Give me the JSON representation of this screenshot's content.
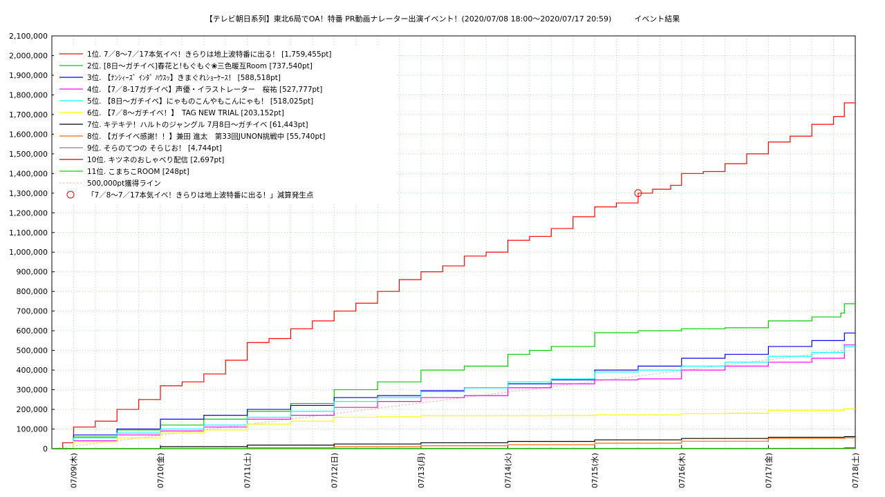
{
  "chart_data": {
    "type": "line",
    "title": "【テレビ朝日系列】東北6局でOA！特番 PR動画ナレーター出演イベント！(2020/07/08 18:00〜2020/07/17 20:59)　　　イベント結果",
    "ylim": [
      0,
      2100000
    ],
    "y_ticks": [
      "0",
      "100,000",
      "200,000",
      "300,000",
      "400,000",
      "500,000",
      "600,000",
      "700,000",
      "800,000",
      "900,000",
      "1,000,000",
      "1,100,000",
      "1,200,000",
      "1,300,000",
      "1,400,000",
      "1,500,000",
      "1,600,000",
      "1,700,000",
      "1,800,000",
      "1,900,000",
      "2,000,000",
      "2,100,000"
    ],
    "x_range": [
      "2020-07-08 18:00",
      "2020-07-18 00:00"
    ],
    "x_ticks": [
      {
        "date": "2020-07-09",
        "label": "07/09(木)"
      },
      {
        "date": "2020-07-10",
        "label": "07/10(金)"
      },
      {
        "date": "2020-07-11",
        "label": "07/11(土)"
      },
      {
        "date": "2020-07-12",
        "label": "07/12(日)"
      },
      {
        "date": "2020-07-13",
        "label": "07/13(月)"
      },
      {
        "date": "2020-07-14",
        "label": "07/14(火)"
      },
      {
        "date": "2020-07-15",
        "label": "07/15(水)"
      },
      {
        "date": "2020-07-16",
        "label": "07/16(木)"
      },
      {
        "date": "2020-07-17",
        "label": "07/17(金)"
      },
      {
        "date": "2020-07-18",
        "label": "07/18(土)"
      }
    ],
    "grid": true,
    "legend_position": "top-left",
    "series": [
      {
        "name": "1位. 7／8〜7／17本気イベ！きらりは地上波特番に出る！ [1,759,455pt]",
        "color": "#ff0000",
        "points": [
          [
            "2020-07-08 18:00",
            0
          ],
          [
            "2020-07-08 21:00",
            30000
          ],
          [
            "2020-07-09 00:00",
            110000
          ],
          [
            "2020-07-09 06:00",
            140000
          ],
          [
            "2020-07-09 12:00",
            200000
          ],
          [
            "2020-07-09 18:00",
            250000
          ],
          [
            "2020-07-10 00:00",
            320000
          ],
          [
            "2020-07-10 06:00",
            340000
          ],
          [
            "2020-07-10 12:00",
            380000
          ],
          [
            "2020-07-10 18:00",
            450000
          ],
          [
            "2020-07-11 00:00",
            540000
          ],
          [
            "2020-07-11 06:00",
            560000
          ],
          [
            "2020-07-11 12:00",
            610000
          ],
          [
            "2020-07-11 18:00",
            650000
          ],
          [
            "2020-07-12 00:00",
            700000
          ],
          [
            "2020-07-12 06:00",
            740000
          ],
          [
            "2020-07-12 12:00",
            800000
          ],
          [
            "2020-07-12 18:00",
            860000
          ],
          [
            "2020-07-13 00:00",
            900000
          ],
          [
            "2020-07-13 06:00",
            930000
          ],
          [
            "2020-07-13 12:00",
            980000
          ],
          [
            "2020-07-13 18:00",
            1000000
          ],
          [
            "2020-07-14 00:00",
            1060000
          ],
          [
            "2020-07-14 06:00",
            1080000
          ],
          [
            "2020-07-14 12:00",
            1120000
          ],
          [
            "2020-07-14 18:00",
            1180000
          ],
          [
            "2020-07-15 00:00",
            1230000
          ],
          [
            "2020-07-15 06:00",
            1250000
          ],
          [
            "2020-07-15 12:00",
            1300000
          ],
          [
            "2020-07-15 16:00",
            1320000
          ],
          [
            "2020-07-15 21:00",
            1340000
          ],
          [
            "2020-07-16 00:00",
            1400000
          ],
          [
            "2020-07-16 06:00",
            1410000
          ],
          [
            "2020-07-16 12:00",
            1450000
          ],
          [
            "2020-07-16 18:00",
            1500000
          ],
          [
            "2020-07-17 00:00",
            1560000
          ],
          [
            "2020-07-17 06:00",
            1590000
          ],
          [
            "2020-07-17 12:00",
            1650000
          ],
          [
            "2020-07-17 18:00",
            1690000
          ],
          [
            "2020-07-17 21:00",
            1759455
          ],
          [
            "2020-07-18 00:00",
            1759455
          ]
        ]
      },
      {
        "name": "2位. [8日〜ガチイベ]春花と!もぐもぐ❀三色暖互Room [737,540pt]",
        "color": "#00cc00",
        "points": [
          [
            "2020-07-08 18:00",
            0
          ],
          [
            "2020-07-09 00:00",
            60000
          ],
          [
            "2020-07-09 12:00",
            95000
          ],
          [
            "2020-07-10 00:00",
            120000
          ],
          [
            "2020-07-10 12:00",
            150000
          ],
          [
            "2020-07-11 00:00",
            190000
          ],
          [
            "2020-07-11 12:00",
            230000
          ],
          [
            "2020-07-12 00:00",
            300000
          ],
          [
            "2020-07-12 12:00",
            340000
          ],
          [
            "2020-07-13 00:00",
            400000
          ],
          [
            "2020-07-13 12:00",
            420000
          ],
          [
            "2020-07-14 00:00",
            480000
          ],
          [
            "2020-07-14 06:00",
            500000
          ],
          [
            "2020-07-14 12:00",
            520000
          ],
          [
            "2020-07-15 00:00",
            590000
          ],
          [
            "2020-07-15 12:00",
            600000
          ],
          [
            "2020-07-16 00:00",
            610000
          ],
          [
            "2020-07-16 12:00",
            615000
          ],
          [
            "2020-07-17 00:00",
            650000
          ],
          [
            "2020-07-17 12:00",
            670000
          ],
          [
            "2020-07-17 20:00",
            690000
          ],
          [
            "2020-07-17 21:00",
            737540
          ],
          [
            "2020-07-18 00:00",
            737540
          ]
        ]
      },
      {
        "name": "3位. 【ﾅﾝｼｨｰｽﾞ ｲﾝﾀﾞ ﾊｳｽｯ】きまぐれｼｮｰｹｰｽ！ [588,518pt]",
        "color": "#0000ee",
        "points": [
          [
            "2020-07-08 18:00",
            0
          ],
          [
            "2020-07-09 00:00",
            70000
          ],
          [
            "2020-07-09 12:00",
            100000
          ],
          [
            "2020-07-10 00:00",
            150000
          ],
          [
            "2020-07-10 12:00",
            170000
          ],
          [
            "2020-07-11 00:00",
            200000
          ],
          [
            "2020-07-11 12:00",
            220000
          ],
          [
            "2020-07-12 00:00",
            260000
          ],
          [
            "2020-07-12 12:00",
            270000
          ],
          [
            "2020-07-13 00:00",
            295000
          ],
          [
            "2020-07-13 12:00",
            310000
          ],
          [
            "2020-07-14 00:00",
            330000
          ],
          [
            "2020-07-14 12:00",
            350000
          ],
          [
            "2020-07-15 00:00",
            400000
          ],
          [
            "2020-07-15 12:00",
            420000
          ],
          [
            "2020-07-16 00:00",
            460000
          ],
          [
            "2020-07-16 12:00",
            480000
          ],
          [
            "2020-07-17 00:00",
            520000
          ],
          [
            "2020-07-17 12:00",
            550000
          ],
          [
            "2020-07-17 21:00",
            588518
          ],
          [
            "2020-07-18 00:00",
            588518
          ]
        ]
      },
      {
        "name": "4位. 【7／8-17ガチイベ】声優・イラストレーター　桜祐 [527,777pt]",
        "color": "#ff00ff",
        "points": [
          [
            "2020-07-08 18:00",
            0
          ],
          [
            "2020-07-09 00:00",
            40000
          ],
          [
            "2020-07-09 12:00",
            70000
          ],
          [
            "2020-07-10 00:00",
            90000
          ],
          [
            "2020-07-10 12:00",
            110000
          ],
          [
            "2020-07-11 00:00",
            150000
          ],
          [
            "2020-07-11 12:00",
            170000
          ],
          [
            "2020-07-12 00:00",
            210000
          ],
          [
            "2020-07-12 12:00",
            240000
          ],
          [
            "2020-07-13 00:00",
            260000
          ],
          [
            "2020-07-13 12:00",
            270000
          ],
          [
            "2020-07-14 00:00",
            310000
          ],
          [
            "2020-07-14 12:00",
            330000
          ],
          [
            "2020-07-15 00:00",
            350000
          ],
          [
            "2020-07-15 12:00",
            355000
          ],
          [
            "2020-07-16 00:00",
            400000
          ],
          [
            "2020-07-16 12:00",
            420000
          ],
          [
            "2020-07-17 00:00",
            440000
          ],
          [
            "2020-07-17 12:00",
            460000
          ],
          [
            "2020-07-17 21:00",
            527777
          ],
          [
            "2020-07-18 00:00",
            527777
          ]
        ]
      },
      {
        "name": "5位. 【8日〜ガチイベ】にゃものこんやもこんにゃも！ [518,025pt]",
        "color": "#00ffff",
        "points": [
          [
            "2020-07-08 18:00",
            0
          ],
          [
            "2020-07-09 00:00",
            55000
          ],
          [
            "2020-07-09 12:00",
            80000
          ],
          [
            "2020-07-10 00:00",
            100000
          ],
          [
            "2020-07-10 12:00",
            120000
          ],
          [
            "2020-07-11 00:00",
            160000
          ],
          [
            "2020-07-11 12:00",
            190000
          ],
          [
            "2020-07-12 00:00",
            240000
          ],
          [
            "2020-07-12 12:00",
            260000
          ],
          [
            "2020-07-13 00:00",
            290000
          ],
          [
            "2020-07-13 12:00",
            310000
          ],
          [
            "2020-07-14 00:00",
            340000
          ],
          [
            "2020-07-14 12:00",
            355000
          ],
          [
            "2020-07-15 00:00",
            390000
          ],
          [
            "2020-07-15 12:00",
            400000
          ],
          [
            "2020-07-16 00:00",
            420000
          ],
          [
            "2020-07-16 12:00",
            440000
          ],
          [
            "2020-07-17 00:00",
            470000
          ],
          [
            "2020-07-17 12:00",
            490000
          ],
          [
            "2020-07-17 21:00",
            518025
          ],
          [
            "2020-07-18 00:00",
            518025
          ]
        ]
      },
      {
        "name": "6位. 【7／8〜ガチイベ！】　TAG NEW TRIAL [203,152pt]",
        "color": "#ffff00",
        "points": [
          [
            "2020-07-08 18:00",
            0
          ],
          [
            "2020-07-09 00:00",
            35000
          ],
          [
            "2020-07-09 12:00",
            55000
          ],
          [
            "2020-07-10 00:00",
            80000
          ],
          [
            "2020-07-10 12:00",
            95000
          ],
          [
            "2020-07-11 00:00",
            125000
          ],
          [
            "2020-07-11 12:00",
            140000
          ],
          [
            "2020-07-12 00:00",
            160000
          ],
          [
            "2020-07-12 12:00",
            162000
          ],
          [
            "2020-07-13 00:00",
            168000
          ],
          [
            "2020-07-14 00:00",
            168000
          ],
          [
            "2020-07-14 12:00",
            169000
          ],
          [
            "2020-07-15 00:00",
            172000
          ],
          [
            "2020-07-16 00:00",
            178000
          ],
          [
            "2020-07-16 12:00",
            180000
          ],
          [
            "2020-07-17 00:00",
            195000
          ],
          [
            "2020-07-17 21:00",
            203152
          ],
          [
            "2020-07-18 00:00",
            203152
          ]
        ]
      },
      {
        "name": "7位. キテキテ！ハルトのジャングル 7月8日〜ガチイベ [61,443pt]",
        "color": "#000000",
        "points": [
          [
            "2020-07-08 18:00",
            0
          ],
          [
            "2020-07-10 00:00",
            10000
          ],
          [
            "2020-07-11 00:00",
            18000
          ],
          [
            "2020-07-12 00:00",
            24000
          ],
          [
            "2020-07-13 00:00",
            30000
          ],
          [
            "2020-07-14 00:00",
            37000
          ],
          [
            "2020-07-15 00:00",
            45000
          ],
          [
            "2020-07-16 00:00",
            52000
          ],
          [
            "2020-07-17 00:00",
            58000
          ],
          [
            "2020-07-17 21:00",
            61443
          ],
          [
            "2020-07-18 00:00",
            61443
          ]
        ]
      },
      {
        "name": "8位. 【ガチイベ感謝！！】兼田 進太　第33回JUNON挑戦中 [55,740pt]",
        "color": "#ff6600",
        "points": [
          [
            "2020-07-08 18:00",
            0
          ],
          [
            "2020-07-11 00:00",
            5000
          ],
          [
            "2020-07-12 00:00",
            10000
          ],
          [
            "2020-07-13 00:00",
            15000
          ],
          [
            "2020-07-14 00:00",
            20000
          ],
          [
            "2020-07-15 00:00",
            28000
          ],
          [
            "2020-07-16 00:00",
            38000
          ],
          [
            "2020-07-17 00:00",
            52000
          ],
          [
            "2020-07-17 21:00",
            55740
          ],
          [
            "2020-07-18 00:00",
            55740
          ]
        ]
      },
      {
        "name": "9位. そらのてつの そらじお！ [4,744pt]",
        "color": "#888888",
        "points": [
          [
            "2020-07-08 18:00",
            0
          ],
          [
            "2020-07-12 00:00",
            2000
          ],
          [
            "2020-07-17 21:00",
            4744
          ],
          [
            "2020-07-18 00:00",
            4744
          ]
        ]
      },
      {
        "name": "10位. キツネのおしゃべり配信 [2,697pt]",
        "color": "#cc0000",
        "points": [
          [
            "2020-07-08 18:00",
            0
          ],
          [
            "2020-07-17 00:00",
            1000
          ],
          [
            "2020-07-17 21:00",
            2697
          ],
          [
            "2020-07-18 00:00",
            2697
          ]
        ]
      },
      {
        "name": "11位. こまちこROOM [248pt]",
        "color": "#00dd00",
        "points": [
          [
            "2020-07-08 18:00",
            0
          ],
          [
            "2020-07-17 21:00",
            248
          ],
          [
            "2020-07-18 00:00",
            248
          ]
        ]
      }
    ],
    "reference_line": {
      "name": "500,000pt獲得ライン",
      "color": "#ff9999",
      "points": [
        [
          "2020-07-08 18:00",
          0
        ],
        [
          "2020-07-17 21:00",
          500000
        ]
      ]
    },
    "markers": [
      {
        "name": "「7／8〜7／17本気イベ！きらりは地上波特番に出る！」減算発生点",
        "color": "#ff0000",
        "points": [
          [
            "2020-07-15 12:00",
            1300000
          ]
        ]
      }
    ]
  }
}
